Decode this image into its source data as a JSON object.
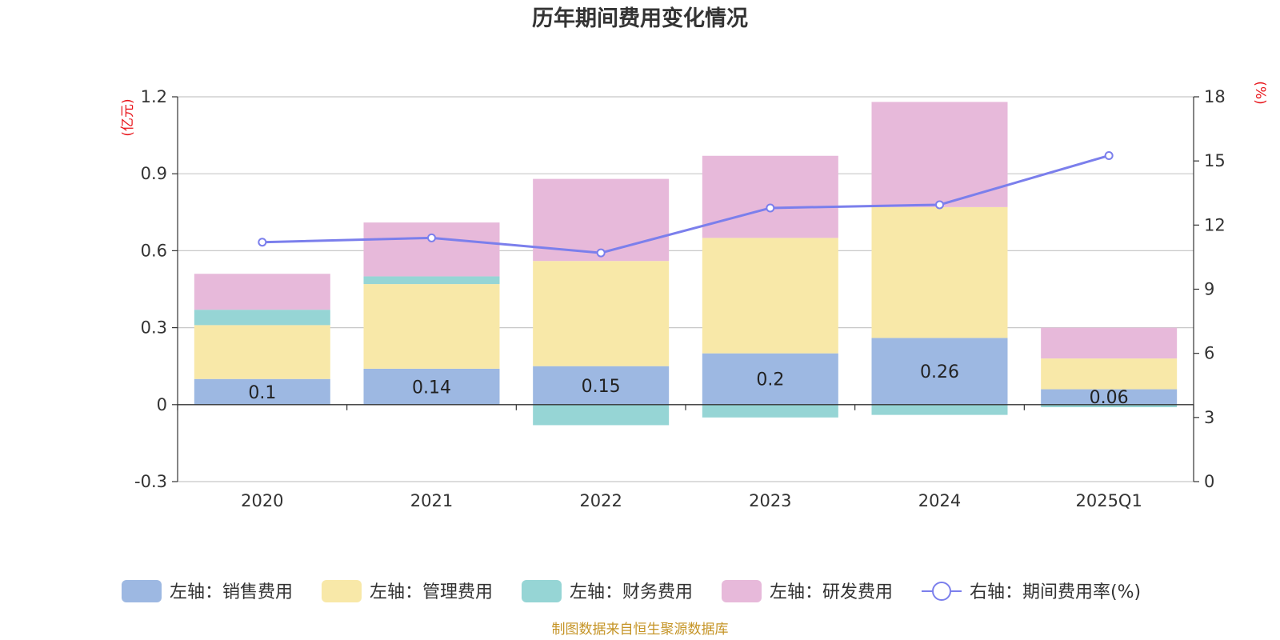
{
  "chart_data": {
    "type": "bar",
    "title": "历年期间费用变化情况",
    "categories": [
      "2020",
      "2021",
      "2022",
      "2023",
      "2024",
      "2025Q1"
    ],
    "left_axis": {
      "unit": "(亿元)",
      "ylim": [
        -0.3,
        1.2
      ],
      "ticks": [
        "1.2",
        "0.9",
        "0.6",
        "0.3",
        "0",
        "-0.3"
      ],
      "tick_values": [
        1.2,
        0.9,
        0.6,
        0.3,
        0,
        -0.3
      ]
    },
    "right_axis": {
      "unit": "(%)",
      "ylim": [
        0,
        18
      ],
      "ticks": [
        "18",
        "15",
        "12",
        "9",
        "6",
        "3",
        "0"
      ],
      "tick_values": [
        18,
        15,
        12,
        9,
        6,
        3,
        0
      ]
    },
    "grid": true,
    "legend_position": "bottom",
    "series": [
      {
        "name": "左轴：销售费用",
        "type": "bar",
        "stack": true,
        "color": "#9db8e2",
        "values": [
          0.1,
          0.14,
          0.15,
          0.2,
          0.26,
          0.06
        ],
        "labels": [
          "0.1",
          "0.14",
          "0.15",
          "0.2",
          "0.26",
          "0.06"
        ]
      },
      {
        "name": "左轴：管理费用",
        "type": "bar",
        "stack": true,
        "color": "#f8e8a8",
        "values": [
          0.21,
          0.33,
          0.41,
          0.45,
          0.51,
          0.12
        ]
      },
      {
        "name": "左轴：财务费用",
        "type": "bar",
        "stack": true,
        "color": "#96d5d5",
        "values": [
          0.06,
          0.03,
          -0.08,
          -0.05,
          -0.04,
          -0.01
        ]
      },
      {
        "name": "左轴：研发费用",
        "type": "bar",
        "stack": true,
        "color": "#e7b9da",
        "values": [
          0.14,
          0.21,
          0.32,
          0.32,
          0.41,
          0.12
        ]
      },
      {
        "name": "右轴：期间费用率(%)",
        "type": "line",
        "axis": "right",
        "color": "#7b7fec",
        "values": [
          11.2,
          11.4,
          10.7,
          12.8,
          12.95,
          15.25
        ]
      }
    ],
    "source": "制图数据来自恒生聚源数据库"
  }
}
